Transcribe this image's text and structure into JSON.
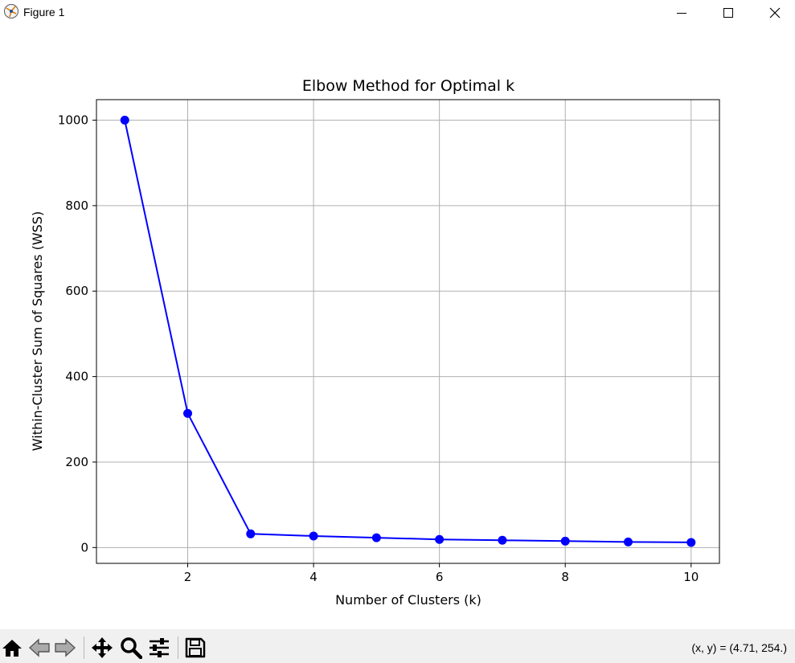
{
  "window": {
    "title": "Figure 1",
    "icons": [
      "figure-app-icon",
      "minimize-icon",
      "maximize-icon",
      "close-icon"
    ]
  },
  "toolbar": {
    "icons": [
      "home-icon",
      "back-arrow-icon",
      "forward-arrow-icon",
      "pan-move-icon",
      "zoom-magnifier-icon",
      "configure-subplots-icon",
      "save-floppy-icon"
    ],
    "coord_readout": "(x, y) = (4.71, 254.)"
  },
  "chart_data": {
    "type": "line",
    "title": "Elbow Method for Optimal k",
    "xlabel": "Number of Clusters (k)",
    "ylabel": "Within-Cluster Sum of Squares (WSS)",
    "x": [
      1,
      2,
      3,
      4,
      5,
      6,
      7,
      8,
      9,
      10
    ],
    "series": [
      {
        "values": [
          1000,
          314,
          32,
          27,
          23,
          19,
          17,
          15,
          13,
          12
        ],
        "color": "#0000ff",
        "marker": "circle"
      }
    ],
    "xlim": [
      0.55,
      10.45
    ],
    "ylim": [
      -37,
      1048
    ],
    "xticks": [
      2,
      4,
      6,
      8,
      10
    ],
    "yticks": [
      0,
      200,
      400,
      600,
      800,
      1000
    ],
    "xtick_labels": [
      "2",
      "4",
      "6",
      "8",
      "10"
    ],
    "ytick_labels": [
      "0",
      "200",
      "400",
      "600",
      "800",
      "1000"
    ],
    "grid": true
  }
}
